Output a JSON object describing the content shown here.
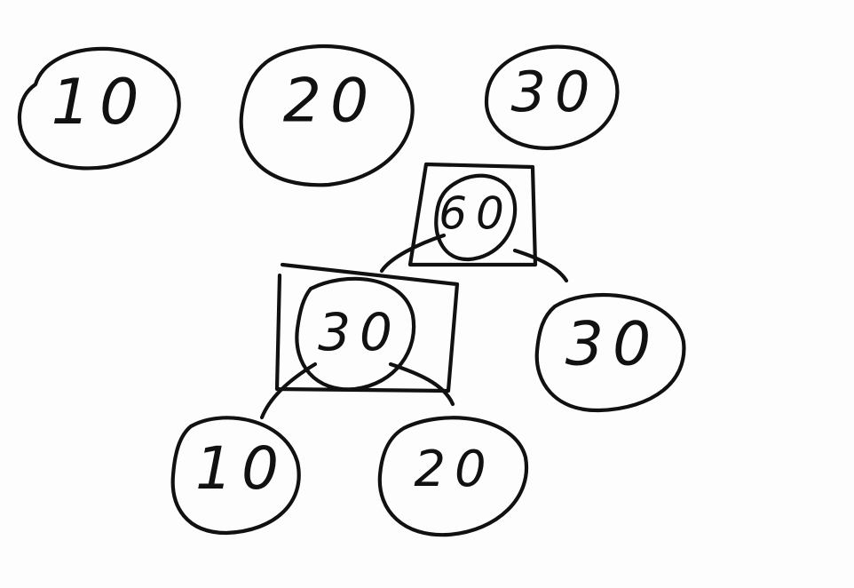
{
  "top_row": [
    {
      "value": "10"
    },
    {
      "value": "20"
    },
    {
      "value": "30"
    }
  ],
  "tree": {
    "root": {
      "value": "60"
    },
    "left": {
      "value": "30"
    },
    "right": {
      "value": "30"
    },
    "left_left": {
      "value": "10"
    },
    "left_right": {
      "value": "20"
    }
  },
  "colors": {
    "ink": "#111111",
    "board": "#fdfdfd"
  }
}
